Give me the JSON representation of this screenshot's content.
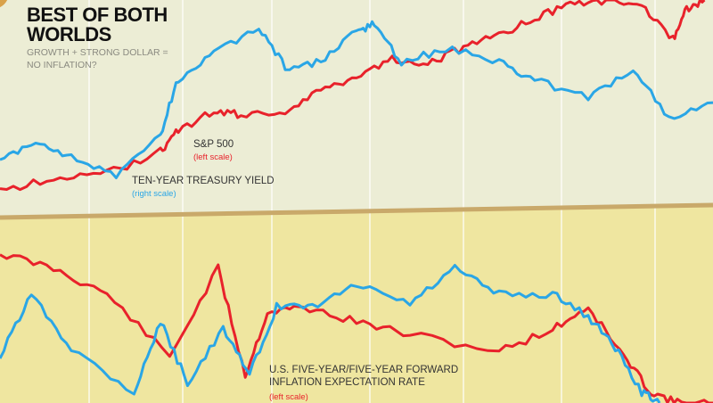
{
  "title": "BEST OF BOTH WORLDS",
  "subtitle": "GROWTH + STRONG DOLLAR = NO INFLATION?",
  "colors": {
    "red": "#e8222b",
    "blue": "#2aa6e6",
    "top_bg": "#ecedd5",
    "bottom_bg": "#efe6a0",
    "divider": "#c9a96a",
    "grid": "#ffffff"
  },
  "chart_data": [
    {
      "type": "line",
      "title": "BEST OF BOTH WORLDS",
      "grid": true,
      "note": "",
      "series": [
        {
          "name": "S&P 500",
          "scale": "(left scale)",
          "color": "#e8222b",
          "x": [
            0,
            7.5,
            15,
            22.5,
            25,
            30,
            33.8,
            40,
            45,
            50,
            55,
            60,
            65,
            70,
            75,
            80,
            85,
            90,
            94.4,
            96.3,
            98.8
          ],
          "values": [
            9,
            15,
            17,
            28,
            38,
            47,
            45,
            47,
            57,
            64,
            72,
            70,
            77,
            83,
            91,
            98,
            100,
            98,
            81,
            96,
            100
          ]
        },
        {
          "name": "TEN-YEAR TREASURY YIELD",
          "scale": "(right scale)",
          "color": "#2aa6e6",
          "x": [
            0,
            5,
            10,
            16.3,
            22.5,
            25,
            30,
            36.3,
            40,
            45,
            50,
            52.5,
            56.3,
            62.5,
            70,
            75,
            82.5,
            88.8,
            93.8,
            100
          ],
          "values": [
            23,
            32,
            26,
            15,
            36,
            62,
            74,
            87,
            68,
            70,
            85,
            89,
            70,
            77,
            70,
            62,
            53,
            68,
            43,
            51
          ]
        }
      ]
    },
    {
      "type": "line",
      "grid": true,
      "series": [
        {
          "name": "U.S. FIVE-YEAR/FIVE-YEAR FORWARD INFLATION EXPECTATION RATE",
          "scale": "(left scale)",
          "color": "#e8222b",
          "x": [
            0,
            7.5,
            15,
            23.8,
            30.6,
            34.4,
            37.5,
            42.5,
            50,
            57.5,
            70,
            77.5,
            82.5,
            87.5,
            91.3,
            95,
            100
          ],
          "values": [
            81,
            73,
            59,
            25,
            73,
            15,
            49,
            52,
            44,
            37,
            28,
            40,
            52,
            25,
            6,
            0,
            0
          ]
        },
        {
          "color": "#2aa6e6",
          "x": [
            0,
            4.4,
            10,
            18.8,
            22.5,
            26.3,
            31.3,
            35,
            38.8,
            43.8,
            50,
            57.5,
            63.8,
            70,
            77.5,
            82.5,
            86.3,
            90,
            92.5
          ],
          "values": [
            25,
            59,
            30,
            6,
            44,
            11,
            40,
            15,
            52,
            52,
            64,
            54,
            73,
            59,
            59,
            47,
            30,
            6,
            0
          ]
        }
      ]
    }
  ]
}
